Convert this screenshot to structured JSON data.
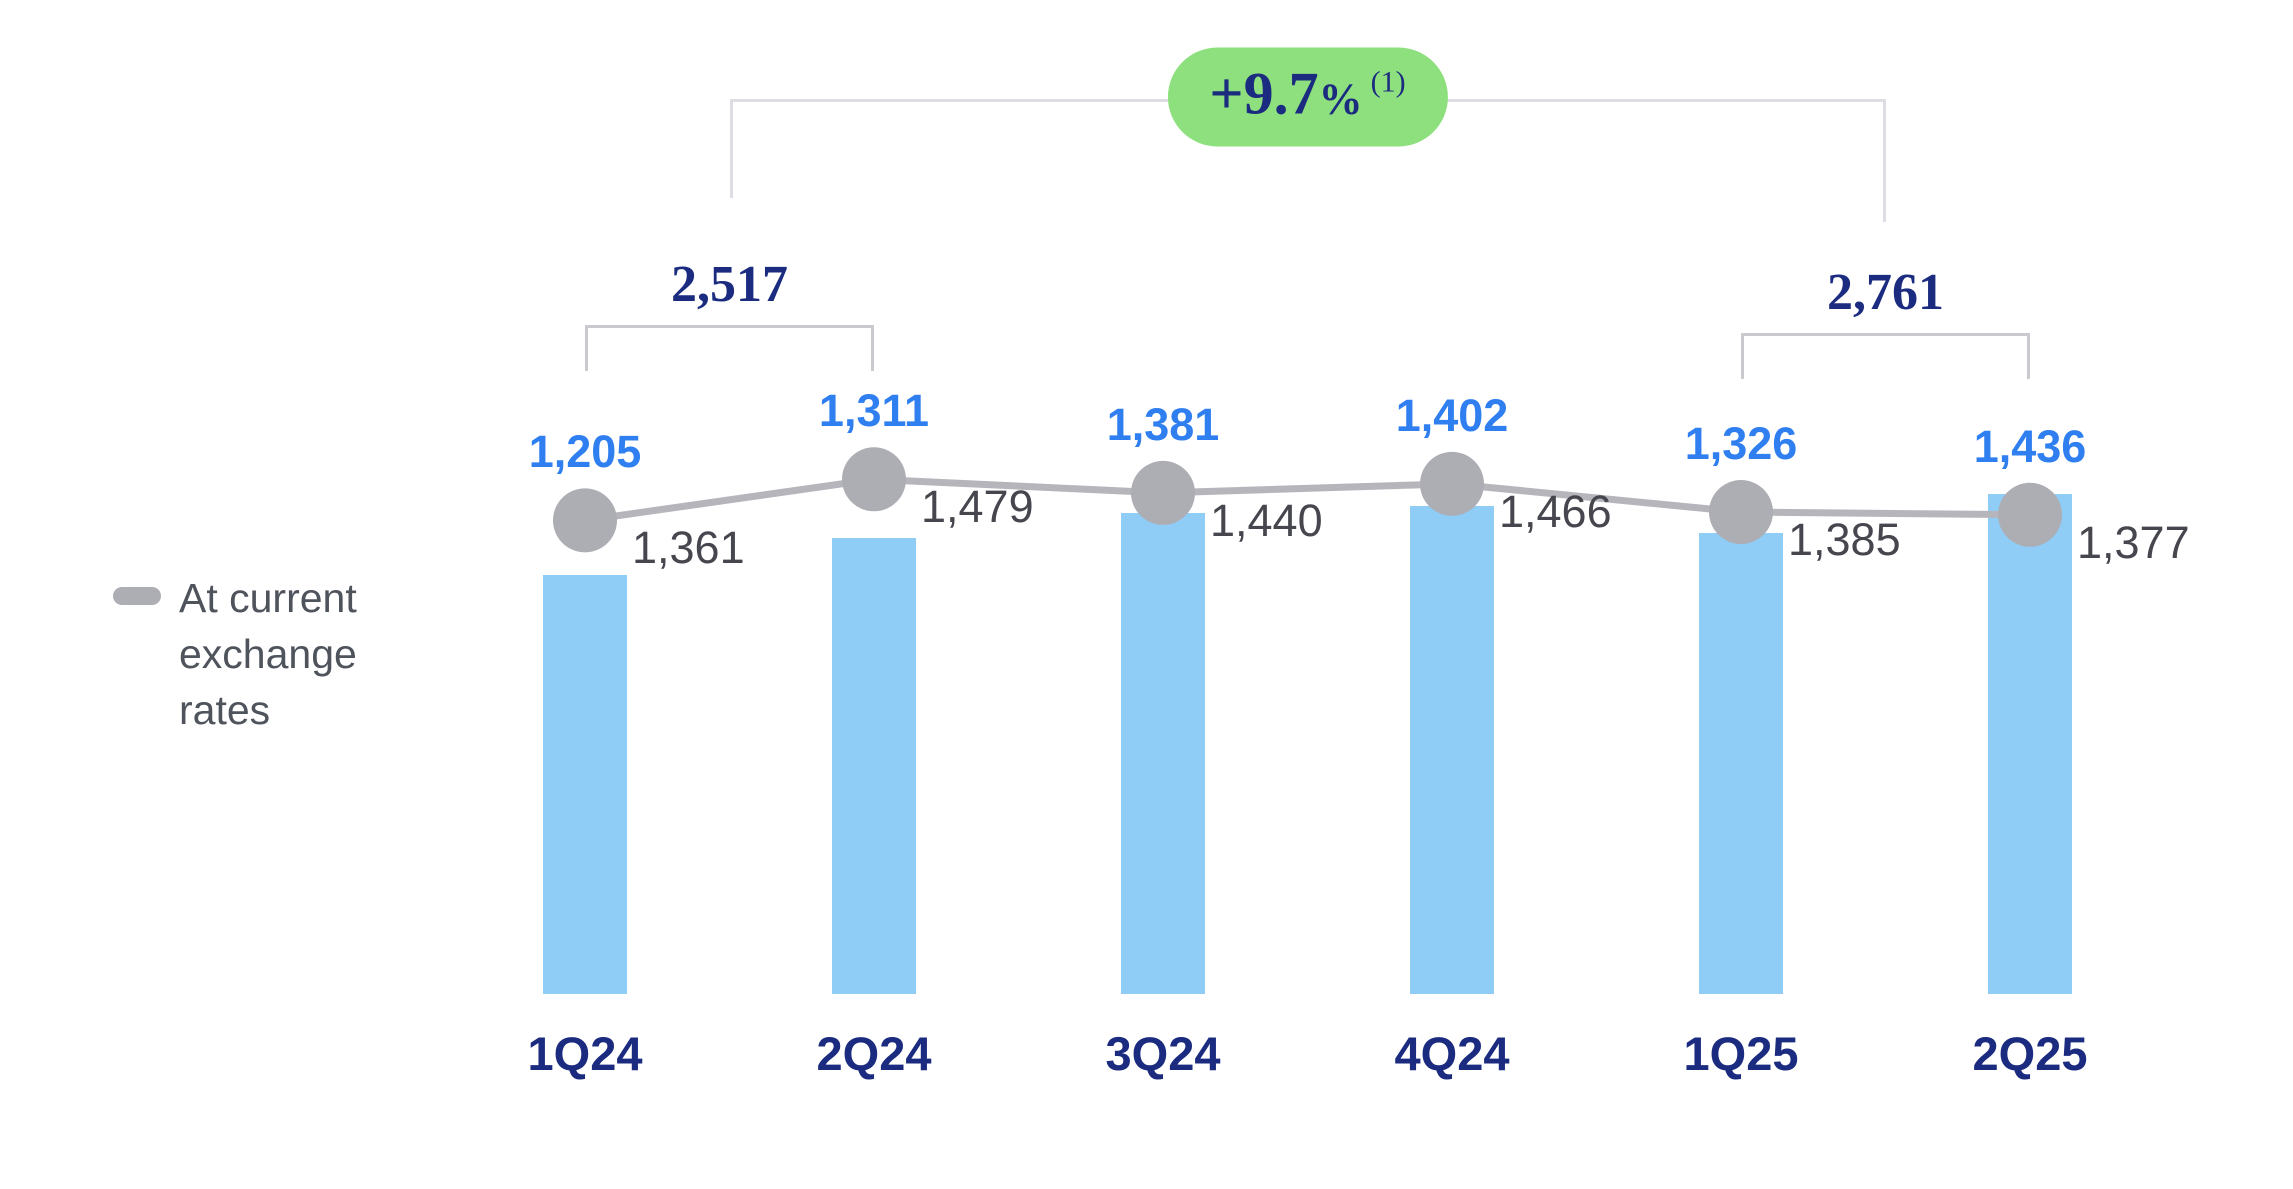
{
  "chart_data": {
    "type": "bar",
    "categories": [
      "1Q24",
      "2Q24",
      "3Q24",
      "4Q24",
      "1Q25",
      "2Q25"
    ],
    "series": [
      {
        "type": "bar",
        "values": [
          1205,
          1311,
          1381,
          1402,
          1326,
          1436
        ],
        "labels": [
          "1,205",
          "1,311",
          "1,381",
          "1,402",
          "1,326",
          "1,436"
        ]
      },
      {
        "name": "At current exchange rates",
        "type": "line",
        "values": [
          1361,
          1479,
          1440,
          1466,
          1385,
          1377
        ],
        "labels": [
          "1,361",
          "1,479",
          "1,440",
          "1,466",
          "1,385",
          "1,377"
        ]
      }
    ],
    "annotations": {
      "brackets": [
        {
          "label": "2,517",
          "from": "1Q24",
          "to": "2Q24"
        },
        {
          "label": "2,761",
          "from": "1Q25",
          "to": "2Q25"
        }
      ],
      "growth_badge": {
        "label": "+9.7",
        "percent_sign": "%",
        "superscript": "(1)"
      }
    },
    "legend": {
      "lines": [
        "At current",
        "exchange",
        "rates"
      ]
    },
    "xlabel": "",
    "ylabel": "",
    "ylim": [
      0,
      2850
    ],
    "grid": false,
    "legend_position": "left"
  },
  "colors": {
    "bar": "#8FCDF6",
    "bar_label": "#2F7FF0",
    "navy": "#1B2B7F",
    "line": "#B5B5BB",
    "marker": "#ADADB4",
    "gray_label": "#46464E",
    "legend_text": "#4F545C",
    "badge_bg": "#8EE07E",
    "bracket": "#C9C9D0",
    "bracket_big": "#DDDDE3"
  }
}
